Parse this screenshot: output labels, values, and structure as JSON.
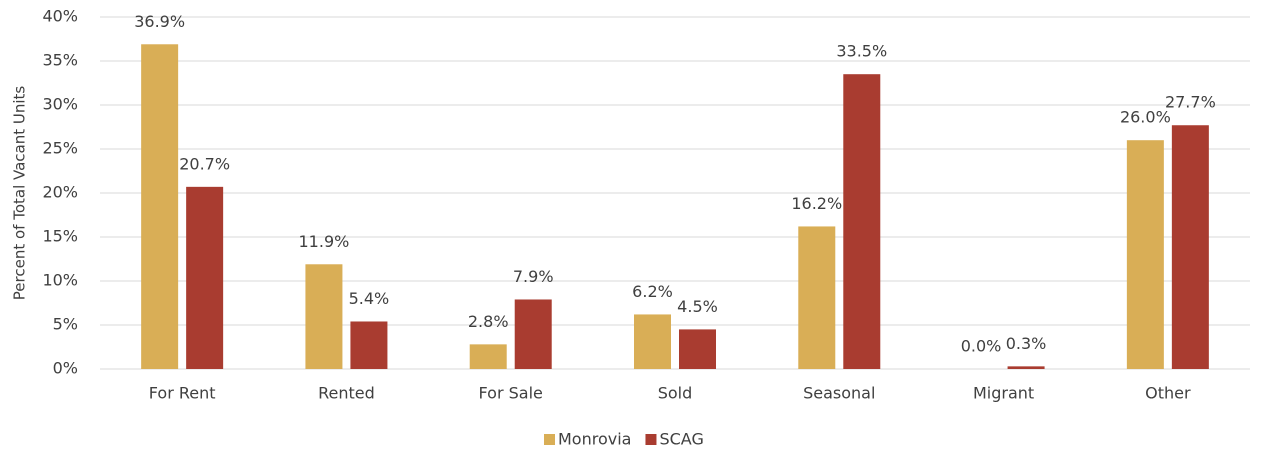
{
  "chart_data": {
    "type": "bar",
    "ylabel": "Percent of Total Vacant Units",
    "categories": [
      "For Rent",
      "Rented",
      "For Sale",
      "Sold",
      "Seasonal",
      "Migrant",
      "Other"
    ],
    "series": [
      {
        "name": "Monrovia",
        "color": "#d9ae56",
        "values": [
          36.9,
          11.9,
          2.8,
          6.2,
          16.2,
          0.0,
          26.0
        ],
        "value_labels": [
          "36.9%",
          "11.9%",
          "2.8%",
          "6.2%",
          "16.2%",
          "0.0%",
          "26.0%"
        ]
      },
      {
        "name": "SCAG",
        "color": "#a93c30",
        "values": [
          20.7,
          5.4,
          7.9,
          4.5,
          33.5,
          0.3,
          27.7
        ],
        "value_labels": [
          "20.7%",
          "5.4%",
          "7.9%",
          "4.5%",
          "33.5%",
          "0.3%",
          "27.7%"
        ]
      }
    ],
    "ylim": [
      0,
      40
    ],
    "yticks": [
      {
        "value": 0,
        "label": "0%"
      },
      {
        "value": 5,
        "label": "5%"
      },
      {
        "value": 10,
        "label": "10%"
      },
      {
        "value": 15,
        "label": "15%"
      },
      {
        "value": 20,
        "label": "20%"
      },
      {
        "value": 25,
        "label": "25%"
      },
      {
        "value": 30,
        "label": "30%"
      },
      {
        "value": 35,
        "label": "35%"
      },
      {
        "value": 40,
        "label": "40%"
      }
    ],
    "grid": true,
    "legend": "bottom"
  }
}
